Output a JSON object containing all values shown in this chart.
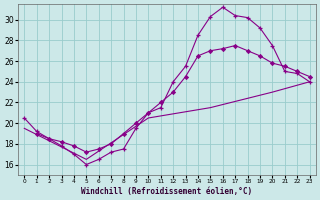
{
  "xlabel": "Windchill (Refroidissement éolien,°C)",
  "bg_color": "#cce8e8",
  "grid_color": "#99cccc",
  "line_color": "#880088",
  "xlim": [
    -0.5,
    23.5
  ],
  "ylim": [
    15.0,
    31.5
  ],
  "yticks": [
    16,
    18,
    20,
    22,
    24,
    26,
    28,
    30
  ],
  "xticks": [
    0,
    1,
    2,
    3,
    4,
    5,
    6,
    7,
    8,
    9,
    10,
    11,
    12,
    13,
    14,
    15,
    16,
    17,
    18,
    19,
    20,
    21,
    22,
    23
  ],
  "curve1_x": [
    0,
    1,
    2,
    3,
    4,
    5,
    6,
    7,
    8,
    9,
    10,
    11,
    12,
    13,
    14,
    15,
    16,
    17,
    18,
    19,
    20,
    21,
    22,
    23
  ],
  "curve1_y": [
    20.5,
    19.2,
    18.5,
    17.8,
    17.0,
    16.0,
    16.5,
    17.2,
    17.5,
    19.5,
    21.0,
    21.5,
    24.0,
    25.5,
    28.5,
    30.3,
    31.2,
    30.4,
    30.2,
    29.2,
    27.5,
    25.0,
    24.8,
    24.0
  ],
  "curve2_x": [
    1,
    2,
    3,
    4,
    5,
    6,
    7,
    8,
    9,
    10,
    11,
    12,
    13,
    14,
    15,
    16,
    17,
    18,
    19,
    20,
    21,
    22,
    23
  ],
  "curve2_y": [
    19.0,
    18.5,
    18.2,
    17.8,
    17.2,
    17.5,
    18.0,
    19.0,
    20.0,
    21.0,
    22.0,
    23.0,
    24.5,
    26.5,
    27.0,
    27.2,
    27.5,
    27.0,
    26.5,
    25.8,
    25.5,
    25.0,
    24.5
  ],
  "curve3_x": [
    0,
    5,
    10,
    15,
    20,
    23
  ],
  "curve3_y": [
    19.5,
    16.5,
    20.5,
    21.5,
    23.0,
    24.0
  ]
}
